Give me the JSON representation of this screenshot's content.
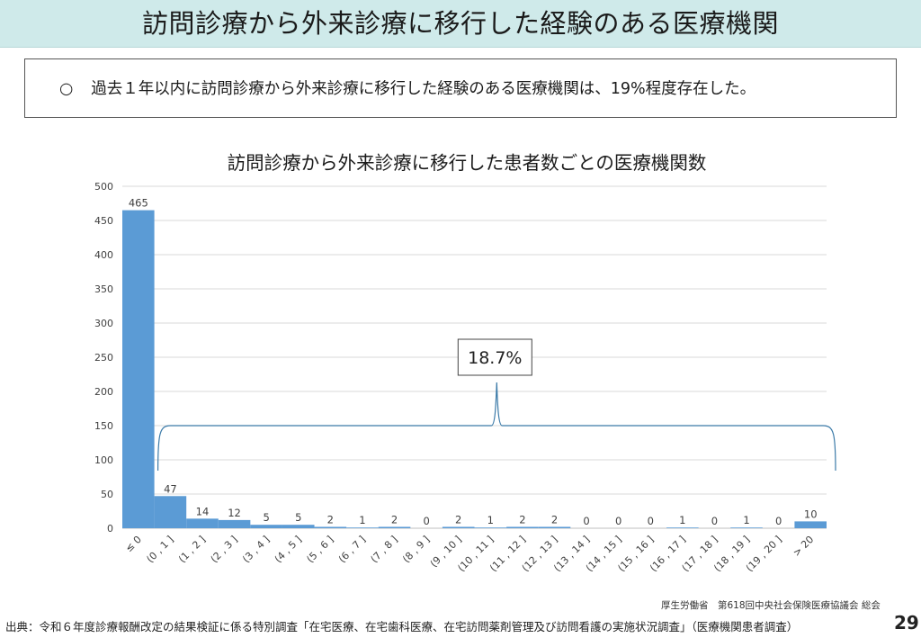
{
  "header": {
    "title": "訪問診療から外来診療に移行した経験のある医療機関"
  },
  "summary": {
    "bullet": "○",
    "text": "過去１年以内に訪問診療から外来診療に移行した経験のある医療機関は、19%程度存在した。"
  },
  "chart_data": {
    "type": "bar",
    "title": "訪問診療から外来診療に移行した患者数ごとの医療機関数",
    "categories": [
      "≤ 0",
      "(0 , 1 ]",
      "(1 , 2 ]",
      "(2 , 3 ]",
      "(3 , 4 ]",
      "(4 , 5 ]",
      "(5 , 6 ]",
      "(6 , 7 ]",
      "(7 , 8 ]",
      "(8 , 9 ]",
      "(9 , 10 ]",
      "(10 , 11 ]",
      "(11 , 12 ]",
      "(12 , 13 ]",
      "(13 , 14 ]",
      "(14 , 15 ]",
      "(15 , 16 ]",
      "(16 , 17 ]",
      "(17 , 18 ]",
      "(18 , 19 ]",
      "(19 , 20 ]",
      "> 20"
    ],
    "values": [
      465,
      47,
      14,
      12,
      5,
      5,
      2,
      1,
      2,
      0,
      2,
      1,
      2,
      2,
      0,
      0,
      0,
      1,
      0,
      1,
      0,
      10
    ],
    "ylim": [
      0,
      500
    ],
    "yticks": [
      0,
      50,
      100,
      150,
      200,
      250,
      300,
      350,
      400,
      450,
      500
    ],
    "grid": true,
    "bar_color": "#5b9bd5",
    "annotation": {
      "text": "18.7%",
      "range": [
        "(0 , 1 ]",
        "> 20"
      ],
      "brace_value": 150
    }
  },
  "footer": {
    "credit": "厚生労働省　第618回中央社会保険医療協議会 総会",
    "source": "出典：令和６年度診療報酬改定の結果検証に係る特別調査「在宅医療、在宅歯科医療、在宅訪問薬剤管理及び訪問看護の実施状況調査」（医療機関患者調査）",
    "page_number": "29"
  }
}
